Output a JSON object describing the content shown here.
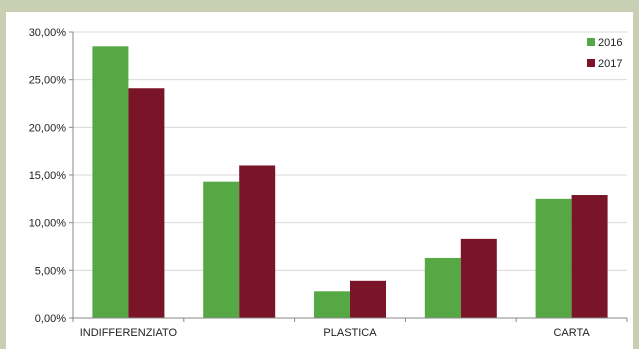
{
  "chart_data": {
    "type": "bar",
    "categories": [
      "INDIFFERENZIATO",
      "",
      "PLASTICA",
      "",
      "CARTA"
    ],
    "series": [
      {
        "name": "2016",
        "values": [
          28.5,
          14.3,
          2.8,
          6.3,
          12.5
        ],
        "color": "#55a844"
      },
      {
        "name": "2017",
        "values": [
          24.1,
          16.0,
          3.9,
          8.3,
          12.9
        ],
        "color": "#7a1429"
      }
    ],
    "y_ticks": [
      "0,00%",
      "5,00%",
      "10,00%",
      "15,00%",
      "20,00%",
      "25,00%",
      "30,00%"
    ],
    "ylim": [
      0,
      30
    ],
    "grid": true,
    "legend_position": "top-right"
  }
}
